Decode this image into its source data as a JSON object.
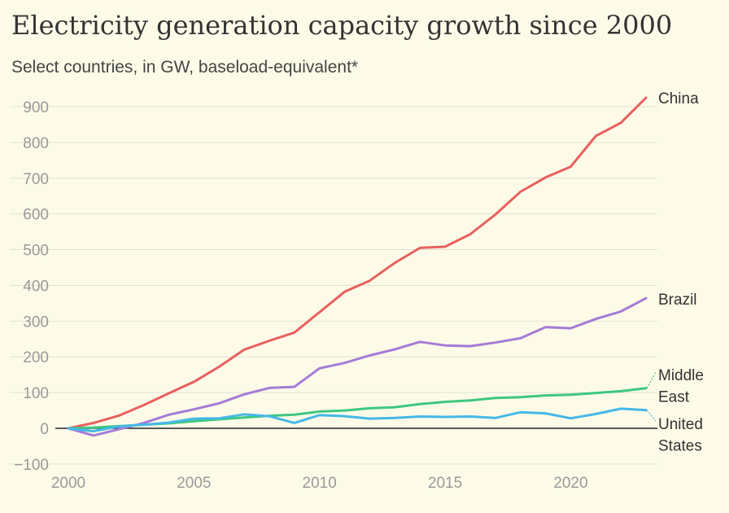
{
  "chart_data": {
    "type": "line",
    "title": "Electricity generation capacity growth since 2000",
    "subtitle": "Select countries, in GW, baseload-equivalent*",
    "xlabel": "",
    "ylabel": "",
    "xlim": [
      2000,
      2023
    ],
    "ylim": [
      -100,
      900
    ],
    "x_ticks": [
      2000,
      2005,
      2010,
      2015,
      2020
    ],
    "y_ticks": [
      -100,
      0,
      100,
      200,
      300,
      400,
      500,
      600,
      700,
      800,
      900
    ],
    "grid": true,
    "legend": "direct labels at line ends",
    "x": [
      2000,
      2001,
      2002,
      2003,
      2004,
      2005,
      2006,
      2007,
      2008,
      2009,
      2010,
      2011,
      2012,
      2013,
      2014,
      2015,
      2016,
      2017,
      2018,
      2019,
      2020,
      2021,
      2022,
      2023
    ],
    "series": [
      {
        "name": "China",
        "label_lines": [
          "China"
        ],
        "color": "#e8605e",
        "values": [
          0,
          15,
          35,
          65,
          98,
          130,
          172,
          220,
          245,
          268,
          325,
          382,
          413,
          463,
          505,
          508,
          543,
          598,
          662,
          702,
          732,
          818,
          855,
          925
        ]
      },
      {
        "name": "Brazil",
        "label_lines": [
          "Brazil"
        ],
        "color": "#a57bd6",
        "values": [
          0,
          -20,
          -3,
          15,
          38,
          53,
          70,
          95,
          113,
          116,
          168,
          183,
          204,
          221,
          242,
          232,
          230,
          240,
          252,
          283,
          280,
          306,
          327,
          364
        ]
      },
      {
        "name": "Middle East",
        "label_lines": [
          "Middle",
          "East"
        ],
        "color": "#3ec87f",
        "values": [
          0,
          2,
          6,
          10,
          14,
          20,
          25,
          30,
          35,
          38,
          47,
          50,
          56,
          59,
          68,
          74,
          78,
          85,
          87,
          92,
          94,
          99,
          104,
          112
        ]
      },
      {
        "name": "United States",
        "label_lines": [
          "United",
          "States"
        ],
        "color": "#46b8e8",
        "values": [
          0,
          -8,
          5,
          10,
          16,
          27,
          28,
          39,
          34,
          15,
          37,
          34,
          27,
          29,
          33,
          32,
          33,
          29,
          45,
          42,
          28,
          40,
          55,
          51
        ]
      }
    ]
  }
}
